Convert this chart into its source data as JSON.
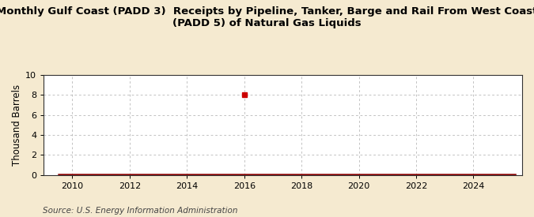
{
  "title": "Monthly Gulf Coast (PADD 3)  Receipts by Pipeline, Tanker, Barge and Rail From West Coast\n(PADD 5) of Natural Gas Liquids",
  "ylabel": "Thousand Barrels",
  "source": "Source: U.S. Energy Information Administration",
  "background_color": "#f5ead0",
  "plot_background_color": "#ffffff",
  "xlim": [
    2009.0,
    2025.7
  ],
  "ylim": [
    0,
    10
  ],
  "yticks": [
    0,
    2,
    4,
    6,
    8,
    10
  ],
  "xticks": [
    2010,
    2012,
    2014,
    2016,
    2018,
    2020,
    2022,
    2024
  ],
  "marker_x": 2016.0,
  "marker_y": 8.0,
  "line_color": "#8b0000",
  "marker_color": "#cc0000",
  "title_fontsize": 9.5,
  "axis_fontsize": 8.5,
  "tick_fontsize": 8,
  "source_fontsize": 7.5
}
